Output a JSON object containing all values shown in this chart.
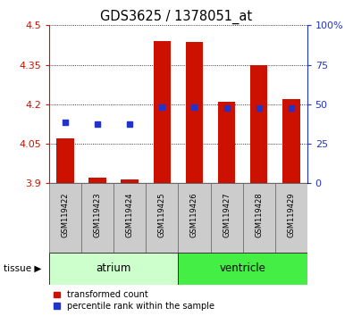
{
  "title": "GDS3625 / 1378051_at",
  "samples": [
    "GSM119422",
    "GSM119423",
    "GSM119424",
    "GSM119425",
    "GSM119426",
    "GSM119427",
    "GSM119428",
    "GSM119429"
  ],
  "transformed_count": [
    4.07,
    3.92,
    3.915,
    4.44,
    4.435,
    4.21,
    4.35,
    4.22
  ],
  "percentile_rank_y": [
    4.13,
    4.125,
    4.125,
    4.19,
    4.19,
    4.185,
    4.185,
    4.185
  ],
  "ymin": 3.9,
  "ymax": 4.5,
  "y_ticks": [
    3.9,
    4.05,
    4.2,
    4.35,
    4.5
  ],
  "y_tick_labels": [
    "3.9",
    "4.05",
    "4.2",
    "4.35",
    "4.5"
  ],
  "right_yticks": [
    0,
    25,
    50,
    75,
    100
  ],
  "right_ytick_labels": [
    "0",
    "25",
    "50",
    "75",
    "100%"
  ],
  "bar_color": "#cc1100",
  "blue_color": "#2233cc",
  "atrium_color": "#ccffcc",
  "ventricle_color": "#44ee44",
  "label_box_color": "#cccccc",
  "left_axis_color": "#cc1100",
  "right_axis_color": "#2233cc",
  "bar_width": 0.55,
  "bar_baseline": 3.9,
  "tissue_groups": [
    {
      "name": "atrium",
      "start": 0,
      "end": 4,
      "color": "#ccffcc"
    },
    {
      "name": "ventricle",
      "start": 4,
      "end": 8,
      "color": "#44ee44"
    }
  ]
}
